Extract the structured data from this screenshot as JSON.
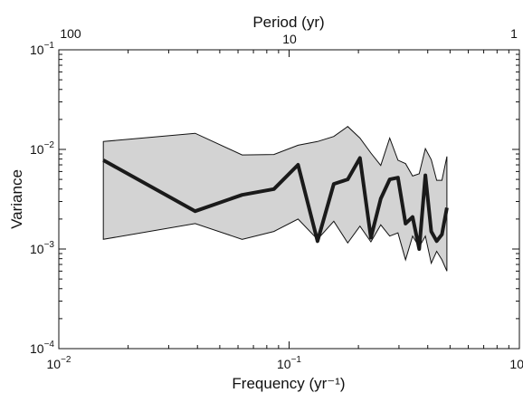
{
  "chart_data": {
    "type": "line",
    "title": "",
    "xlabel": "Frequency (yr⁻¹)",
    "ylabel": "Variance",
    "top_xlabel": "Period (yr)",
    "x_scale": "log",
    "y_scale": "log",
    "xlim": [
      0.01,
      1
    ],
    "ylim": [
      0.0001,
      0.1
    ],
    "top_ticks": [
      "100",
      "10",
      "1"
    ],
    "grid": false,
    "legend": "none",
    "x": [
      0.0156,
      0.0391,
      0.0625,
      0.0859,
      0.1094,
      0.1328,
      0.1563,
      0.1797,
      0.2031,
      0.2266,
      0.25,
      0.2734,
      0.2969,
      0.3203,
      0.3438,
      0.3672,
      0.3906,
      0.4141,
      0.4375,
      0.4609,
      0.4844
    ],
    "series": [
      {
        "values": [
          0.0078,
          0.0024,
          0.0035,
          0.004,
          0.007,
          0.0012,
          0.0045,
          0.005,
          0.0082,
          0.0013,
          0.0032,
          0.005,
          0.0052,
          0.0018,
          0.0021,
          0.001,
          0.0055,
          0.0015,
          0.0012,
          0.0014,
          0.0026
        ],
        "color": "#1a1a1a"
      }
    ],
    "band_upper": [
      0.012,
      0.0145,
      0.0088,
      0.0089,
      0.011,
      0.012,
      0.0135,
      0.017,
      0.013,
      0.0092,
      0.0069,
      0.013,
      0.0078,
      0.0072,
      0.0054,
      0.0057,
      0.0102,
      0.0079,
      0.0049,
      0.0049,
      0.0085
    ],
    "band_lower": [
      0.00125,
      0.0018,
      0.00125,
      0.0015,
      0.002,
      0.00125,
      0.0019,
      0.00115,
      0.0017,
      0.00118,
      0.00175,
      0.00135,
      0.00145,
      0.00078,
      0.00135,
      0.00105,
      0.00135,
      0.00072,
      0.00095,
      0.00078,
      0.0006
    ],
    "band_color": "#d3d3d3",
    "line_color": "#1a1a1a"
  }
}
